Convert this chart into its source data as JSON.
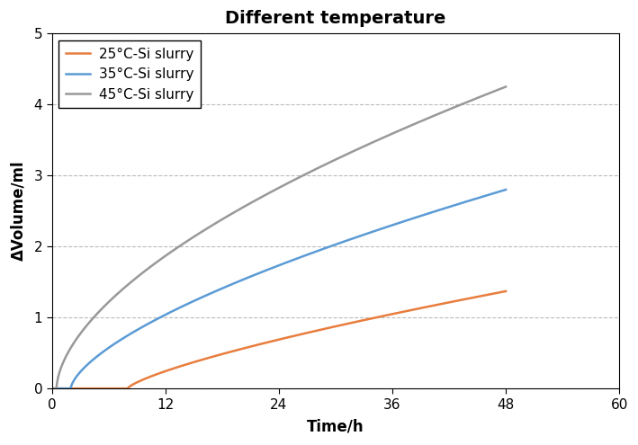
{
  "title": "Different temperature",
  "xlabel": "Time/h",
  "ylabel": "ΔVolume/ml",
  "xlim": [
    0,
    60
  ],
  "ylim": [
    0,
    5
  ],
  "xticks": [
    0,
    12,
    24,
    36,
    48,
    60
  ],
  "yticks": [
    0,
    1,
    2,
    3,
    4,
    5
  ],
  "series": [
    {
      "label": "25°C-Si slurry",
      "color": "#E87D3E",
      "end_value": 1.37,
      "lag": 8.0,
      "power": 0.75
    },
    {
      "label": "35°C-Si slurry",
      "color": "#5B9BD5",
      "end_value": 2.8,
      "lag": 2.0,
      "power": 0.65
    },
    {
      "label": "45°C-Si slurry",
      "color": "#999999",
      "end_value": 4.25,
      "lag": 0.5,
      "power": 0.58
    }
  ],
  "grid_color": "#BBBBBB",
  "grid_linestyle": "--",
  "legend_loc": "upper left",
  "title_fontsize": 14,
  "label_fontsize": 12,
  "tick_fontsize": 11,
  "legend_fontsize": 11,
  "line_width": 1.8,
  "title_fontweight": "bold",
  "xlabel_fontweight": "bold",
  "ylabel_fontweight": "bold",
  "figsize": [
    7.09,
    4.95
  ],
  "dpi": 100
}
